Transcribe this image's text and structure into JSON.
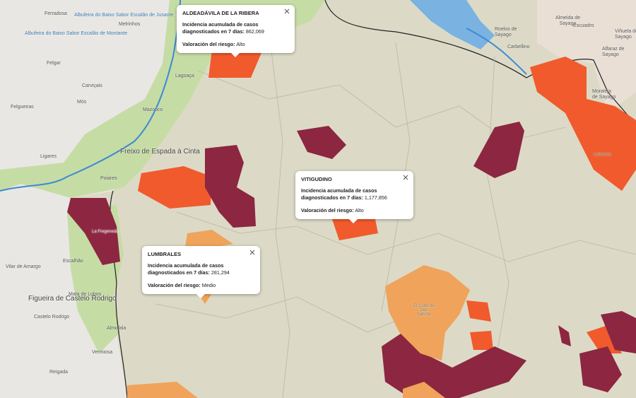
{
  "places": {
    "ferradosa": "Ferradosa",
    "albufeira": "Albufeira do Baixo Sabor Escalão de Montante",
    "albufeira_top": "Albufeira do Baixo Sabor Escalão de Jusante",
    "melrinhos": "Melrinhos",
    "felgar": "Felgar",
    "carvicais": "Carviçais",
    "mos": "Mós",
    "felgueiras": "Felgueiras",
    "lagoaca": "Lagoaça",
    "mazouco": "Mazouco",
    "freixo": "Freixo de Espada à Cinta",
    "ligares": "Ligares",
    "poiares": "Poiares",
    "vilar": "Vilar de Amargo",
    "escalhao": "Escalhão",
    "figueira": "Figueira de Castelo Rodrigo",
    "castelo": "Castelo Rodrigo",
    "mata": "Mata de Lobos",
    "almofala": "Almofala",
    "vermiosa": "Vermiosa",
    "reigada": "Reigada",
    "almeida": "Almeida de Sayago",
    "roelos": "Roelos de Sayago",
    "escuadro": "Escuadro",
    "vinuela": "Viñuela de Sayago",
    "carbellino": "Carbellino",
    "alfaraz": "Alfaraz de Sayago",
    "moraleja": "Moraleja de Sayago",
    "fregeneda": "La Fregeneda",
    "ledesma": "Ledesma",
    "castillejo": "El Cubo de Don Sancho"
  },
  "popups": [
    {
      "title": "ALDEADÁVILA DE LA RIBERA",
      "incidence_label": "Incidencia acumulada de casos diagnosticados en 7 días:",
      "incidence_value": "862,069",
      "risk_label": "Valoración del riesgo:",
      "risk_value": "Alto"
    },
    {
      "title": "VITIGUDINO",
      "incidence_label": "Incidencia acumulada de casos diagnosticados en 7 días:",
      "incidence_value": "1,177,856",
      "risk_label": "Valoración del riesgo:",
      "risk_value": "Alto"
    },
    {
      "title": "LUMBRALES",
      "incidence_label": "Incidencia acumulada de casos diagnosticados en 7 días:",
      "incidence_value": "281,294",
      "risk_label": "Valoración del riesgo:",
      "risk_value": "Medio"
    }
  ]
}
